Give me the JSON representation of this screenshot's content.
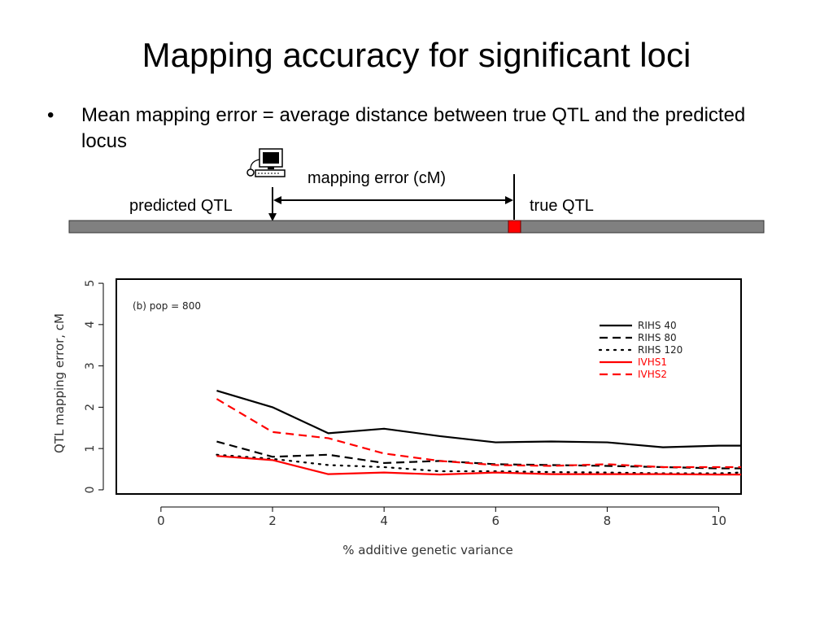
{
  "slide": {
    "title": "Mapping accuracy for significant loci",
    "bullet": "Mean mapping error = average distance between true QTL and the predicted locus"
  },
  "icons": {
    "computer": "computer-icon"
  },
  "diagram": {
    "error_label": "mapping error (cM)",
    "predicted_label": "predicted QTL",
    "true_label": "true QTL",
    "bar_color": "#808080",
    "true_marker_color": "#ff0000"
  },
  "chart_data": {
    "type": "line",
    "annotation": "(b) pop = 800",
    "xlabel": "% additive genetic variance",
    "ylabel": "QTL mapping error, cM",
    "xlim": [
      -0.8,
      10.4
    ],
    "ylim": [
      -0.1,
      5.1
    ],
    "xticks": [
      0,
      2,
      4,
      6,
      8,
      10
    ],
    "yticks": [
      0,
      1,
      2,
      3,
      4,
      5
    ],
    "grid": false,
    "legend_position": "top-right",
    "series": [
      {
        "name": "RIHS 40",
        "color": "#000000",
        "dash": "solid",
        "x": [
          1,
          2,
          3,
          4,
          5,
          6,
          7,
          8,
          9,
          10,
          10.4
        ],
        "y": [
          2.4,
          2.0,
          1.37,
          1.48,
          1.3,
          1.15,
          1.17,
          1.15,
          1.03,
          1.07,
          1.07
        ]
      },
      {
        "name": "RIHS 80",
        "color": "#000000",
        "dash": "dashed",
        "x": [
          1,
          2,
          3,
          4,
          5,
          6,
          7,
          8,
          9,
          10,
          10.4
        ],
        "y": [
          1.17,
          0.8,
          0.85,
          0.65,
          0.7,
          0.62,
          0.6,
          0.58,
          0.55,
          0.52,
          0.52
        ]
      },
      {
        "name": "RIHS 120",
        "color": "#000000",
        "dash": "dotted",
        "x": [
          1,
          2,
          3,
          4,
          5,
          6,
          7,
          8,
          9,
          10,
          10.4
        ],
        "y": [
          0.85,
          0.75,
          0.6,
          0.55,
          0.45,
          0.45,
          0.43,
          0.42,
          0.4,
          0.4,
          0.42
        ]
      },
      {
        "name": "IVHS1",
        "color": "#ff0000",
        "dash": "solid",
        "x": [
          1,
          2,
          3,
          4,
          5,
          6,
          7,
          8,
          9,
          10,
          10.4
        ],
        "y": [
          0.82,
          0.72,
          0.38,
          0.42,
          0.37,
          0.42,
          0.38,
          0.38,
          0.38,
          0.37,
          0.37
        ]
      },
      {
        "name": "IVHS2",
        "color": "#ff0000",
        "dash": "dashed",
        "x": [
          1,
          2,
          3,
          4,
          5,
          6,
          7,
          8,
          9,
          10,
          10.4
        ],
        "y": [
          2.2,
          1.4,
          1.25,
          0.88,
          0.7,
          0.6,
          0.58,
          0.62,
          0.55,
          0.55,
          0.55
        ]
      }
    ]
  }
}
